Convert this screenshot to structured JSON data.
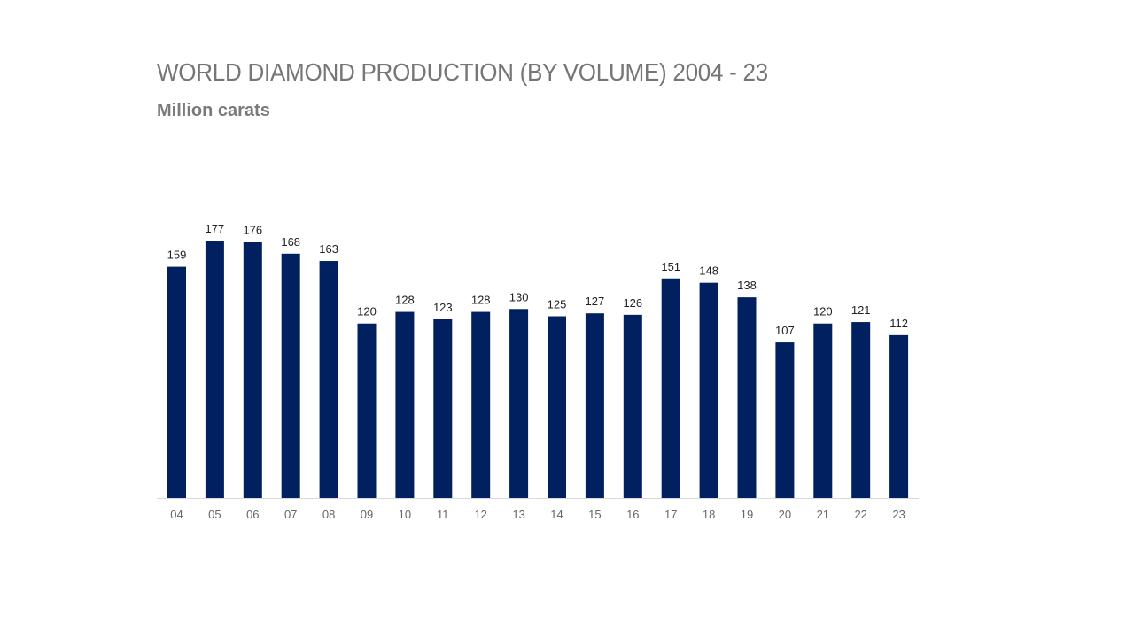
{
  "chart_data": {
    "type": "bar",
    "title": "WORLD DIAMOND PRODUCTION (BY VOLUME) 2004 - 23",
    "subtitle": "Million carats",
    "categories": [
      "04",
      "05",
      "06",
      "07",
      "08",
      "09",
      "10",
      "11",
      "12",
      "13",
      "14",
      "15",
      "16",
      "17",
      "18",
      "19",
      "20",
      "21",
      "22",
      "23"
    ],
    "values": [
      159,
      177,
      176,
      168,
      163,
      120,
      128,
      123,
      128,
      130,
      125,
      127,
      126,
      151,
      148,
      138,
      107,
      120,
      121,
      112
    ],
    "xlabel": "",
    "ylabel": "",
    "ylim": [
      0,
      177
    ],
    "grid": false,
    "data_labels": true,
    "colors": {
      "bar": "#002060",
      "title": "#767676",
      "axis": "#d9d9d9"
    }
  }
}
